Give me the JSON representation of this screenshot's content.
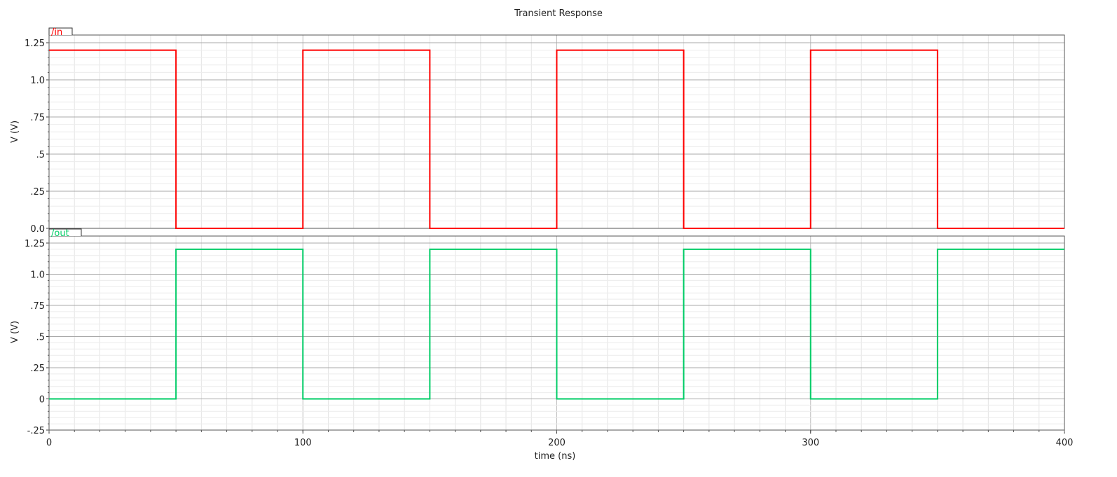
{
  "chart_data": [
    {
      "type": "line",
      "title": "Transient Response",
      "xlabel": "time (ns)",
      "ylabel": "V (V)",
      "xlim": [
        0,
        400
      ],
      "ylim": [
        0,
        1.25
      ],
      "yticks": [
        0.0,
        0.25,
        0.5,
        0.75,
        1.0,
        1.25
      ],
      "ytick_labels": [
        "0.0",
        ".25",
        ".5",
        ".75",
        "1.0",
        "1.25"
      ],
      "grid": true,
      "series": [
        {
          "name": "/in",
          "color": "#ff0000",
          "x": [
            0,
            50,
            50,
            100,
            100,
            150,
            150,
            200,
            200,
            250,
            250,
            300,
            300,
            350,
            350,
            400
          ],
          "y": [
            1.2,
            1.2,
            0,
            0,
            1.2,
            1.2,
            0,
            0,
            1.2,
            1.2,
            0,
            0,
            1.2,
            1.2,
            0,
            0
          ]
        }
      ]
    },
    {
      "type": "line",
      "xlabel": "time (ns)",
      "ylabel": "V (V)",
      "xlim": [
        0,
        400
      ],
      "ylim": [
        -0.25,
        1.25
      ],
      "xticks": [
        0,
        100,
        200,
        300,
        400
      ],
      "xtick_labels": [
        "0",
        "100",
        "200",
        "300",
        "400"
      ],
      "yticks": [
        -0.25,
        0,
        0.25,
        0.5,
        0.75,
        1.0,
        1.25
      ],
      "ytick_labels": [
        "-.25",
        "0",
        ".25",
        ".5",
        ".75",
        "1.0",
        "1.25"
      ],
      "grid": true,
      "series": [
        {
          "name": "/out",
          "color": "#00cc66",
          "x": [
            0,
            50,
            50,
            100,
            100,
            150,
            150,
            200,
            200,
            250,
            250,
            300,
            300,
            350,
            350,
            400
          ],
          "y": [
            0,
            0,
            1.2,
            1.2,
            0,
            0,
            1.2,
            1.2,
            0,
            0,
            1.2,
            1.2,
            0,
            0,
            1.2,
            1.2
          ]
        }
      ]
    }
  ]
}
